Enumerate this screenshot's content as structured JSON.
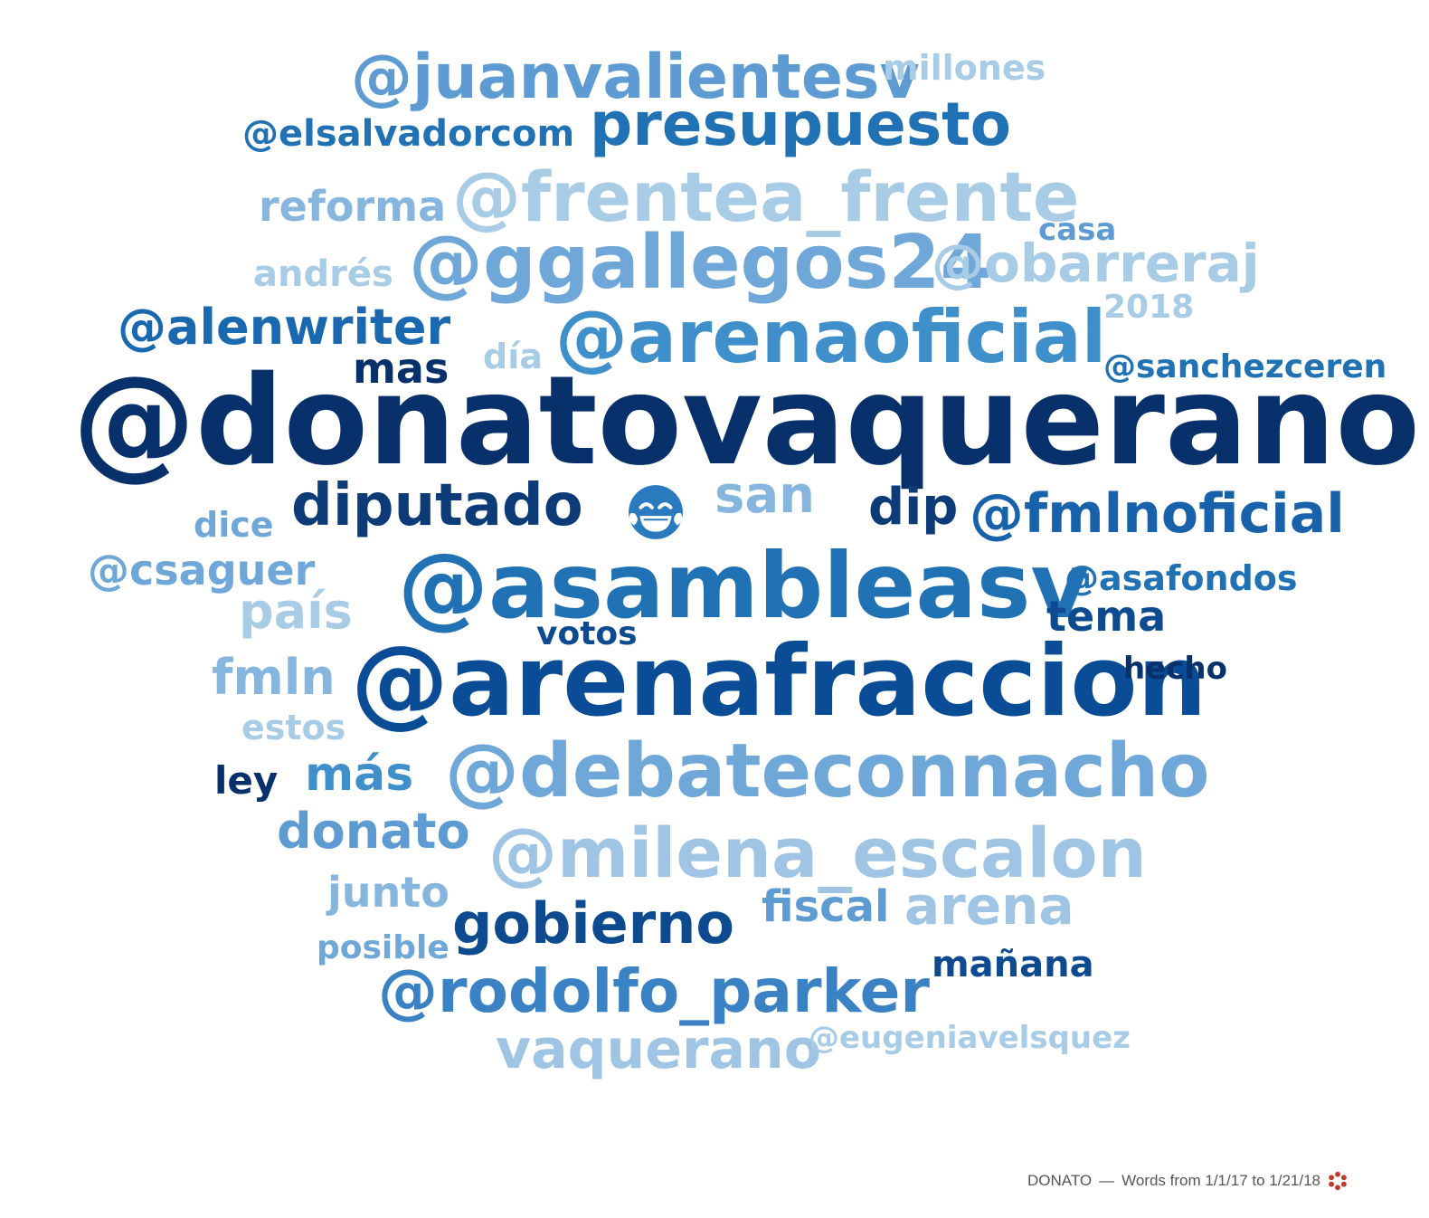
{
  "footer": {
    "title": "DONATO",
    "separator": "—",
    "range_text": "Words from 1/1/17 to 1/21/18"
  },
  "emoji": "face-with-tears-of-joy-icon",
  "colors": {
    "darkest": "#08306b",
    "dark": "#0a4d96",
    "mid": "#2a7abf",
    "light": "#5d9bd2",
    "lighter": "#86b6de",
    "lightest": "#a8cbe6",
    "logo": "#c0392b"
  },
  "words": [
    {
      "text": "@donatovaquerano",
      "color": "#08306b"
    },
    {
      "text": "@arenafraccion",
      "color": "#0a4d96"
    },
    {
      "text": "@asambleasv",
      "color": "#2171b5"
    },
    {
      "text": "@arenaoficial",
      "color": "#3f8fcb"
    },
    {
      "text": "@debateconnacho",
      "color": "#6ea7d8"
    },
    {
      "text": "@milena_escalon",
      "color": "#a0c4e4"
    },
    {
      "text": "@ggallegos24",
      "color": "#6ea7d8"
    },
    {
      "text": "@frentea_frente",
      "color": "#a8cbe6"
    },
    {
      "text": "@juanvalientesv",
      "color": "#5d9bd2"
    },
    {
      "text": "presupuesto",
      "color": "#2171b5"
    },
    {
      "text": "@rodolfo_parker",
      "color": "#3a82c4"
    },
    {
      "text": "@fmlnoficial",
      "color": "#1862ab"
    },
    {
      "text": "diputado",
      "color": "#0c3b78"
    },
    {
      "text": "gobierno",
      "color": "#0d4a90"
    },
    {
      "text": "vaquerano",
      "color": "#a0c4e4"
    },
    {
      "text": "@alenwriter",
      "color": "#1a68b0"
    },
    {
      "text": "@obarreraj",
      "color": "#a8cbe6"
    },
    {
      "text": "@elsalvadorcom",
      "color": "#2171b5"
    },
    {
      "text": "arena",
      "color": "#a0c4e4"
    },
    {
      "text": "donato",
      "color": "#5d9bd2"
    },
    {
      "text": "san",
      "color": "#86b6de"
    },
    {
      "text": "dip",
      "color": "#0c3b78"
    },
    {
      "text": "país",
      "color": "#a8cbe6"
    },
    {
      "text": "fmln",
      "color": "#86b6de"
    },
    {
      "text": "más",
      "color": "#3f8fcb"
    },
    {
      "text": "reforma",
      "color": "#86b6de"
    },
    {
      "text": "@csaguer",
      "color": "#6ea7d8"
    },
    {
      "text": "tema",
      "color": "#0d4a90"
    },
    {
      "text": "mas",
      "color": "#08306b"
    },
    {
      "text": "fiscal",
      "color": "#5d9bd2"
    },
    {
      "text": "millones",
      "color": "#a8cbe6"
    },
    {
      "text": "@sanchezceren",
      "color": "#2171b5"
    },
    {
      "text": "andrés",
      "color": "#a8cbe6"
    },
    {
      "text": "@asafondos",
      "color": "#2171b5"
    },
    {
      "text": "junto",
      "color": "#86b6de"
    },
    {
      "text": "mañana",
      "color": "#0d4a90"
    },
    {
      "text": "dice",
      "color": "#6ea7d8"
    },
    {
      "text": "@eugeniavelsquez",
      "color": "#a8cbe6"
    },
    {
      "text": "2018",
      "color": "#a8cbe6"
    },
    {
      "text": "casa",
      "color": "#5d9bd2"
    },
    {
      "text": "día",
      "color": "#a8cbe6"
    },
    {
      "text": "estos",
      "color": "#a8cbe6"
    },
    {
      "text": "posible",
      "color": "#6ea7d8"
    },
    {
      "text": "votos",
      "color": "#0d4a90"
    },
    {
      "text": "hecho",
      "color": "#08306b"
    },
    {
      "text": "ley",
      "color": "#08306b"
    }
  ]
}
